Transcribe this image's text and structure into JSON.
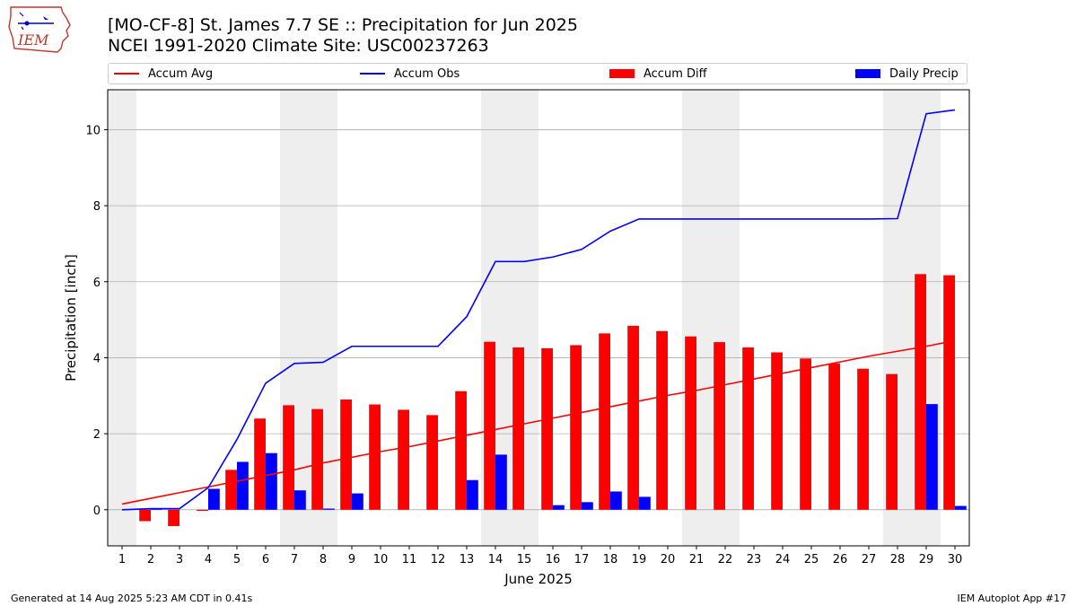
{
  "header": {
    "logo_text": "IEM",
    "title_line1": "[MO-CF-8] St. James 7.7 SE :: Precipitation for Jun 2025",
    "title_line2": "NCEI 1991-2020 Climate Site: USC00237263"
  },
  "footer": {
    "left": "Generated at 14 Aug 2025 5:23 AM CDT in 0.41s",
    "right": "IEM Autoplot App #17"
  },
  "colors": {
    "accum_avg": "#ff0000",
    "accum_obs": "#0000ff",
    "accum_diff": "#ff0000",
    "daily_precip": "#0000ff",
    "weekend_shade": "#eeeeee",
    "grid": "#b0b0b0"
  },
  "chart_data": {
    "type": "bar",
    "xlabel": "June 2025",
    "ylabel": "Precipitation [inch]",
    "xlim": [
      0.5,
      30.5
    ],
    "ylim": [
      -0.95,
      11.05
    ],
    "yticks": [
      0,
      2,
      4,
      6,
      8,
      10
    ],
    "grid": "horizontal",
    "legend_position": "top",
    "legend": [
      {
        "label": "Accum Avg",
        "kind": "line"
      },
      {
        "label": "Accum Obs",
        "kind": "line"
      },
      {
        "label": "Accum Diff",
        "kind": "bar"
      },
      {
        "label": "Daily Precip",
        "kind": "bar"
      }
    ],
    "weekend_days": [
      1,
      7,
      8,
      14,
      15,
      21,
      22,
      28,
      29
    ],
    "days": [
      1,
      2,
      3,
      4,
      5,
      6,
      7,
      8,
      9,
      10,
      11,
      12,
      13,
      14,
      15,
      16,
      17,
      18,
      19,
      20,
      21,
      22,
      23,
      24,
      25,
      26,
      27,
      28,
      29,
      30
    ],
    "series": [
      {
        "name": "Accum Avg",
        "type": "line",
        "values": [
          0.15,
          0.3,
          0.45,
          0.6,
          0.75,
          0.9,
          1.05,
          1.23,
          1.38,
          1.53,
          1.66,
          1.81,
          1.96,
          2.11,
          2.26,
          2.41,
          2.56,
          2.71,
          2.86,
          3.01,
          3.14,
          3.29,
          3.44,
          3.59,
          3.74,
          3.89,
          4.04,
          4.17,
          4.3,
          4.45
        ]
      },
      {
        "name": "Accum Obs",
        "type": "line",
        "values": [
          0.0,
          0.03,
          0.03,
          0.58,
          1.85,
          3.33,
          3.85,
          3.88,
          4.3,
          4.3,
          4.3,
          4.3,
          5.08,
          6.53,
          6.53,
          6.65,
          6.85,
          7.33,
          7.65,
          7.65,
          7.65,
          7.65,
          7.65,
          7.65,
          7.65,
          7.65,
          7.65,
          7.66,
          10.42,
          10.52
        ]
      },
      {
        "name": "Accum Diff",
        "type": "bar",
        "values": [
          null,
          -0.3,
          -0.43,
          -0.03,
          1.05,
          2.4,
          2.75,
          2.65,
          2.9,
          2.77,
          2.63,
          2.49,
          3.12,
          4.42,
          4.27,
          4.25,
          4.33,
          4.64,
          4.84,
          4.7,
          4.56,
          4.41,
          4.27,
          4.14,
          3.98,
          3.85,
          3.71,
          3.57,
          6.2,
          6.17
        ]
      },
      {
        "name": "Daily Precip",
        "type": "bar",
        "values": [
          null,
          0.03,
          0.0,
          0.55,
          1.26,
          1.49,
          0.51,
          0.03,
          0.43,
          0.0,
          0.0,
          0.0,
          0.78,
          1.45,
          0.0,
          0.12,
          0.2,
          0.48,
          0.34,
          0.0,
          0.0,
          0.0,
          0.0,
          0.0,
          0.0,
          0.0,
          0.0,
          0.0,
          2.78,
          0.1
        ]
      }
    ]
  }
}
